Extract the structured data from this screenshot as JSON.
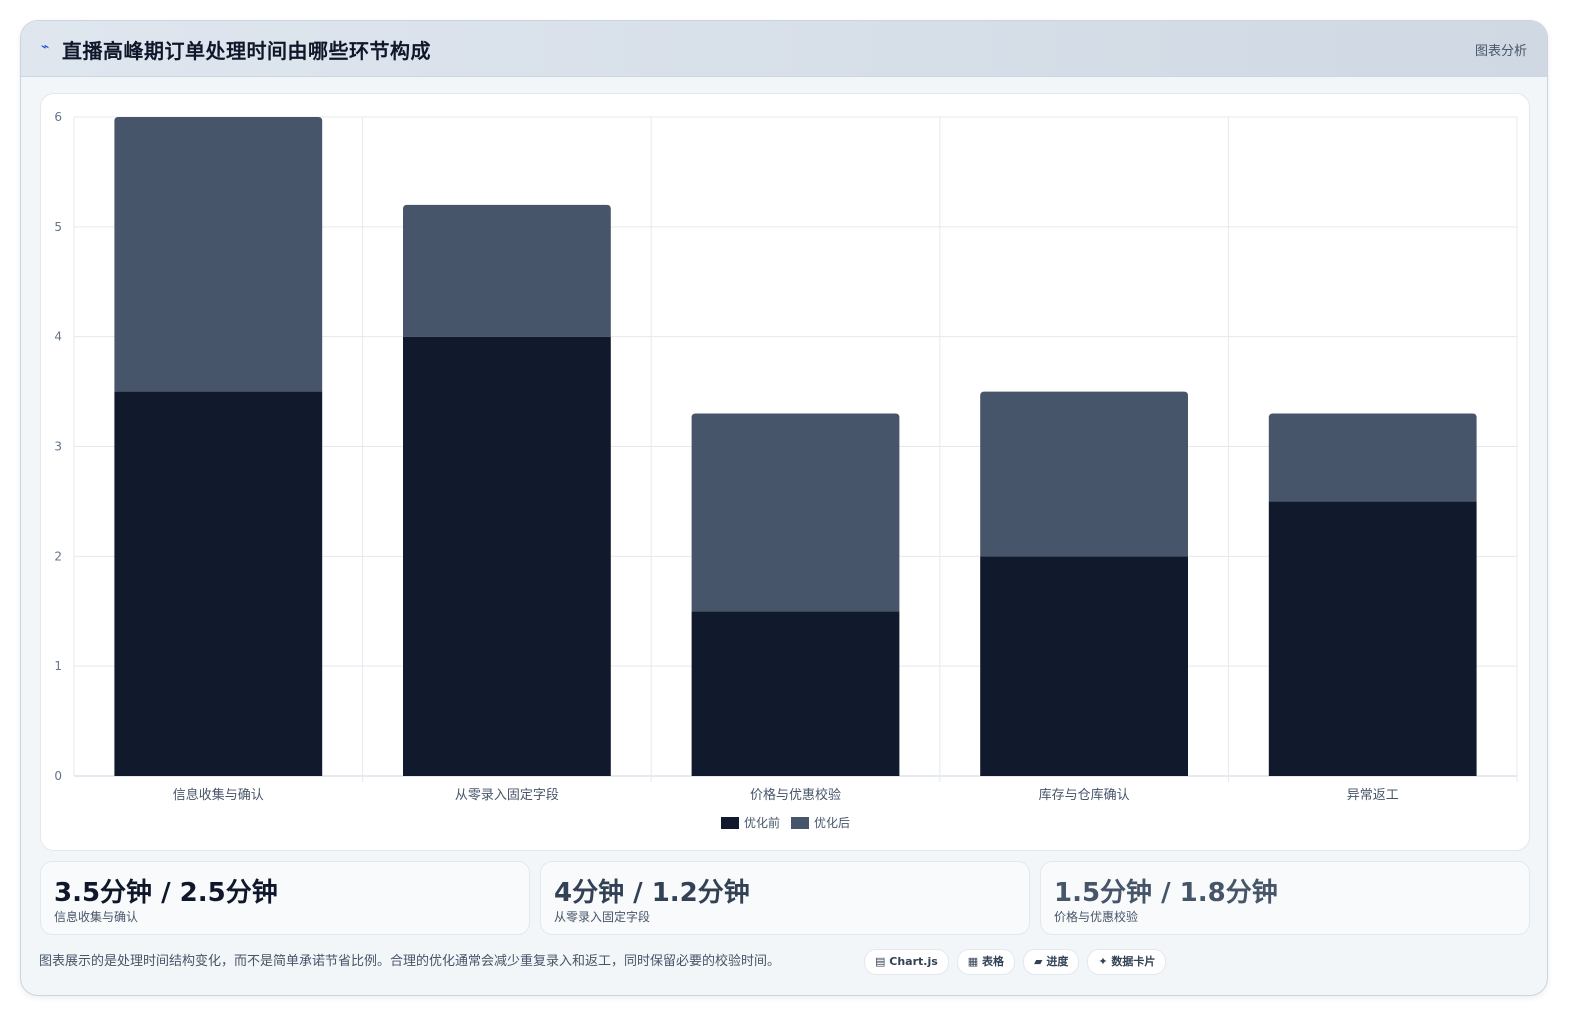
{
  "header": {
    "icon": "trend-line-icon",
    "title": "直播高峰期订单处理时间由哪些环节构成",
    "tag": "图表分析"
  },
  "chart_data": {
    "type": "bar",
    "stacked": true,
    "categories": [
      "信息收集与确认",
      "从零录入固定字段",
      "价格与优惠校验",
      "库存与仓库确认",
      "异常返工"
    ],
    "series": [
      {
        "name": "优化前",
        "values": [
          3.5,
          4,
          1.5,
          2,
          2.5
        ],
        "color": "#111a2c"
      },
      {
        "name": "优化后",
        "values": [
          2.5,
          1.2,
          1.8,
          1.5,
          0.8
        ],
        "color": "#47556a"
      }
    ],
    "ylim": [
      0,
      6
    ],
    "yticks": [
      "0",
      "1",
      "2",
      "3",
      "4",
      "5",
      "6"
    ],
    "grid": true,
    "legend": "bottom"
  },
  "stats": [
    {
      "value": "3.5分钟 / 2.5分钟",
      "label": "信息收集与确认",
      "color": "#0f172a"
    },
    {
      "value": "4分钟 / 1.2分钟",
      "label": "从零录入固定字段",
      "color": "#334155"
    },
    {
      "value": "1.5分钟 / 1.8分钟",
      "label": "价格与优惠校验",
      "color": "#475569"
    }
  ],
  "footer": {
    "note": "图表展示的是处理时间结构变化，而不是简单承诺节省比例。合理的优化通常会减少重复录入和返工，同时保留必要的校验时间。",
    "tags": [
      {
        "icon": "chart-icon",
        "glyph": "▤",
        "label": "Chart.js"
      },
      {
        "icon": "table-icon",
        "glyph": "▦",
        "label": "表格"
      },
      {
        "icon": "progress-icon",
        "glyph": "▰",
        "label": "进度"
      },
      {
        "icon": "sparkle-icon",
        "glyph": "✦",
        "label": "数据卡片"
      }
    ]
  }
}
